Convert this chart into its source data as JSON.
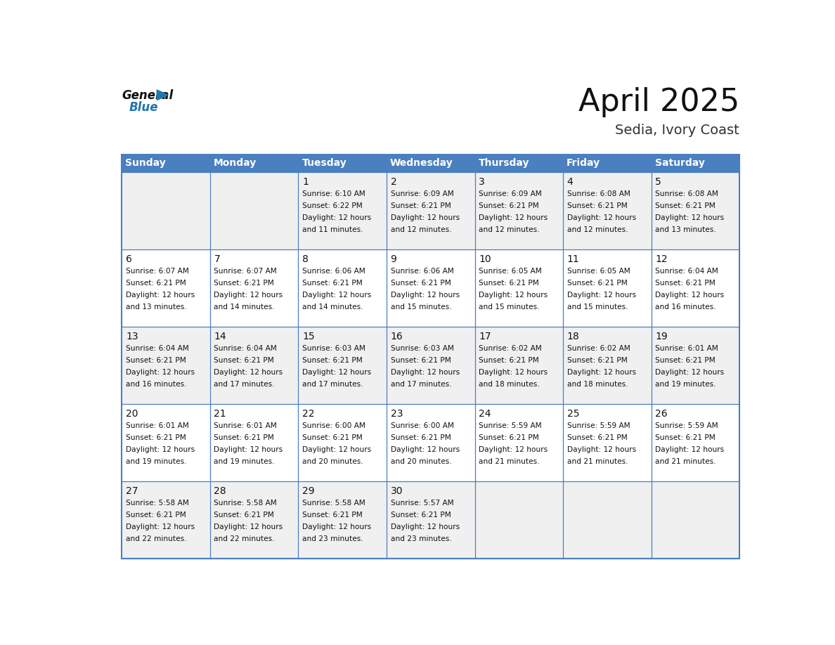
{
  "title": "April 2025",
  "subtitle": "Sedia, Ivory Coast",
  "header_bg_color": "#4A7FC0",
  "header_text_color": "#FFFFFF",
  "cell_bg_white": "#FFFFFF",
  "cell_bg_gray": "#F0F0F0",
  "border_color": "#4A7FC0",
  "text_color": "#1a1a1a",
  "day_names": [
    "Sunday",
    "Monday",
    "Tuesday",
    "Wednesday",
    "Thursday",
    "Friday",
    "Saturday"
  ],
  "days_data": [
    {
      "day": 1,
      "col": 2,
      "row": 0,
      "sunrise": "6:10 AM",
      "sunset": "6:22 PM",
      "daylight": "12 hours and 11 minutes."
    },
    {
      "day": 2,
      "col": 3,
      "row": 0,
      "sunrise": "6:09 AM",
      "sunset": "6:21 PM",
      "daylight": "12 hours and 12 minutes."
    },
    {
      "day": 3,
      "col": 4,
      "row": 0,
      "sunrise": "6:09 AM",
      "sunset": "6:21 PM",
      "daylight": "12 hours and 12 minutes."
    },
    {
      "day": 4,
      "col": 5,
      "row": 0,
      "sunrise": "6:08 AM",
      "sunset": "6:21 PM",
      "daylight": "12 hours and 12 minutes."
    },
    {
      "day": 5,
      "col": 6,
      "row": 0,
      "sunrise": "6:08 AM",
      "sunset": "6:21 PM",
      "daylight": "12 hours and 13 minutes."
    },
    {
      "day": 6,
      "col": 0,
      "row": 1,
      "sunrise": "6:07 AM",
      "sunset": "6:21 PM",
      "daylight": "12 hours and 13 minutes."
    },
    {
      "day": 7,
      "col": 1,
      "row": 1,
      "sunrise": "6:07 AM",
      "sunset": "6:21 PM",
      "daylight": "12 hours and 14 minutes."
    },
    {
      "day": 8,
      "col": 2,
      "row": 1,
      "sunrise": "6:06 AM",
      "sunset": "6:21 PM",
      "daylight": "12 hours and 14 minutes."
    },
    {
      "day": 9,
      "col": 3,
      "row": 1,
      "sunrise": "6:06 AM",
      "sunset": "6:21 PM",
      "daylight": "12 hours and 15 minutes."
    },
    {
      "day": 10,
      "col": 4,
      "row": 1,
      "sunrise": "6:05 AM",
      "sunset": "6:21 PM",
      "daylight": "12 hours and 15 minutes."
    },
    {
      "day": 11,
      "col": 5,
      "row": 1,
      "sunrise": "6:05 AM",
      "sunset": "6:21 PM",
      "daylight": "12 hours and 15 minutes."
    },
    {
      "day": 12,
      "col": 6,
      "row": 1,
      "sunrise": "6:04 AM",
      "sunset": "6:21 PM",
      "daylight": "12 hours and 16 minutes."
    },
    {
      "day": 13,
      "col": 0,
      "row": 2,
      "sunrise": "6:04 AM",
      "sunset": "6:21 PM",
      "daylight": "12 hours and 16 minutes."
    },
    {
      "day": 14,
      "col": 1,
      "row": 2,
      "sunrise": "6:04 AM",
      "sunset": "6:21 PM",
      "daylight": "12 hours and 17 minutes."
    },
    {
      "day": 15,
      "col": 2,
      "row": 2,
      "sunrise": "6:03 AM",
      "sunset": "6:21 PM",
      "daylight": "12 hours and 17 minutes."
    },
    {
      "day": 16,
      "col": 3,
      "row": 2,
      "sunrise": "6:03 AM",
      "sunset": "6:21 PM",
      "daylight": "12 hours and 17 minutes."
    },
    {
      "day": 17,
      "col": 4,
      "row": 2,
      "sunrise": "6:02 AM",
      "sunset": "6:21 PM",
      "daylight": "12 hours and 18 minutes."
    },
    {
      "day": 18,
      "col": 5,
      "row": 2,
      "sunrise": "6:02 AM",
      "sunset": "6:21 PM",
      "daylight": "12 hours and 18 minutes."
    },
    {
      "day": 19,
      "col": 6,
      "row": 2,
      "sunrise": "6:01 AM",
      "sunset": "6:21 PM",
      "daylight": "12 hours and 19 minutes."
    },
    {
      "day": 20,
      "col": 0,
      "row": 3,
      "sunrise": "6:01 AM",
      "sunset": "6:21 PM",
      "daylight": "12 hours and 19 minutes."
    },
    {
      "day": 21,
      "col": 1,
      "row": 3,
      "sunrise": "6:01 AM",
      "sunset": "6:21 PM",
      "daylight": "12 hours and 19 minutes."
    },
    {
      "day": 22,
      "col": 2,
      "row": 3,
      "sunrise": "6:00 AM",
      "sunset": "6:21 PM",
      "daylight": "12 hours and 20 minutes."
    },
    {
      "day": 23,
      "col": 3,
      "row": 3,
      "sunrise": "6:00 AM",
      "sunset": "6:21 PM",
      "daylight": "12 hours and 20 minutes."
    },
    {
      "day": 24,
      "col": 4,
      "row": 3,
      "sunrise": "5:59 AM",
      "sunset": "6:21 PM",
      "daylight": "12 hours and 21 minutes."
    },
    {
      "day": 25,
      "col": 5,
      "row": 3,
      "sunrise": "5:59 AM",
      "sunset": "6:21 PM",
      "daylight": "12 hours and 21 minutes."
    },
    {
      "day": 26,
      "col": 6,
      "row": 3,
      "sunrise": "5:59 AM",
      "sunset": "6:21 PM",
      "daylight": "12 hours and 21 minutes."
    },
    {
      "day": 27,
      "col": 0,
      "row": 4,
      "sunrise": "5:58 AM",
      "sunset": "6:21 PM",
      "daylight": "12 hours and 22 minutes."
    },
    {
      "day": 28,
      "col": 1,
      "row": 4,
      "sunrise": "5:58 AM",
      "sunset": "6:21 PM",
      "daylight": "12 hours and 22 minutes."
    },
    {
      "day": 29,
      "col": 2,
      "row": 4,
      "sunrise": "5:58 AM",
      "sunset": "6:21 PM",
      "daylight": "12 hours and 23 minutes."
    },
    {
      "day": 30,
      "col": 3,
      "row": 4,
      "sunrise": "5:57 AM",
      "sunset": "6:21 PM",
      "daylight": "12 hours and 23 minutes."
    }
  ]
}
